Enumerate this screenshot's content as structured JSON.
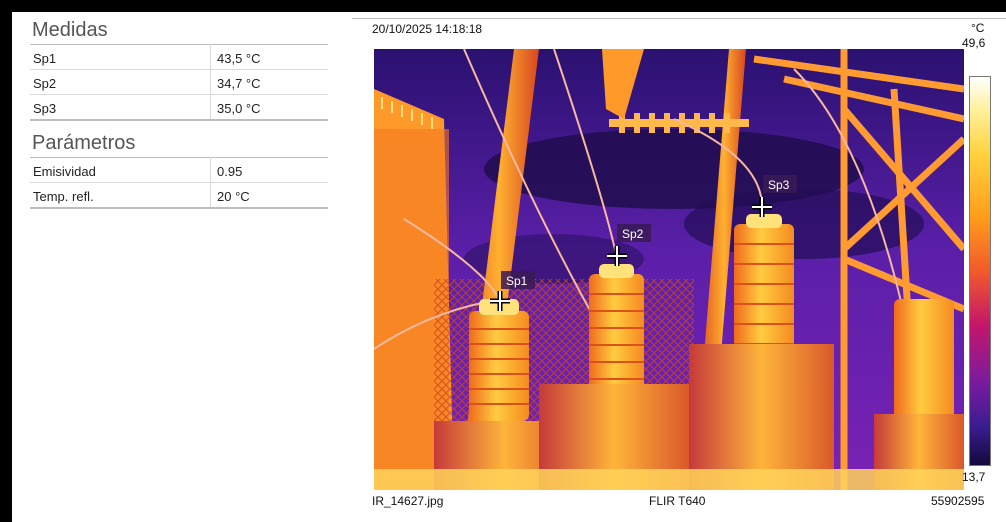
{
  "measurements": {
    "title": "Medidas",
    "rows": [
      {
        "label": "Sp1",
        "value": "43,5 °C"
      },
      {
        "label": "Sp2",
        "value": "34,7 °C"
      },
      {
        "label": "Sp3",
        "value": "35,0 °C"
      }
    ]
  },
  "parameters": {
    "title": "Parámetros",
    "rows": [
      {
        "label": "Emisividad",
        "value": "0.95"
      },
      {
        "label": "Temp. refl.",
        "value": "20 °C"
      }
    ]
  },
  "image": {
    "timestamp": "20/10/2025 14:18:18",
    "filename": "IR_14627.jpg",
    "camera": "FLIR T640",
    "serial": "55902595",
    "spots": [
      "Sp1",
      "Sp2",
      "Sp3"
    ]
  },
  "scale": {
    "unit": "°C",
    "max": "49,6",
    "min": "13,7"
  },
  "colors": {
    "palette": "iron",
    "frame": "#000000",
    "background": "#ffffff"
  }
}
